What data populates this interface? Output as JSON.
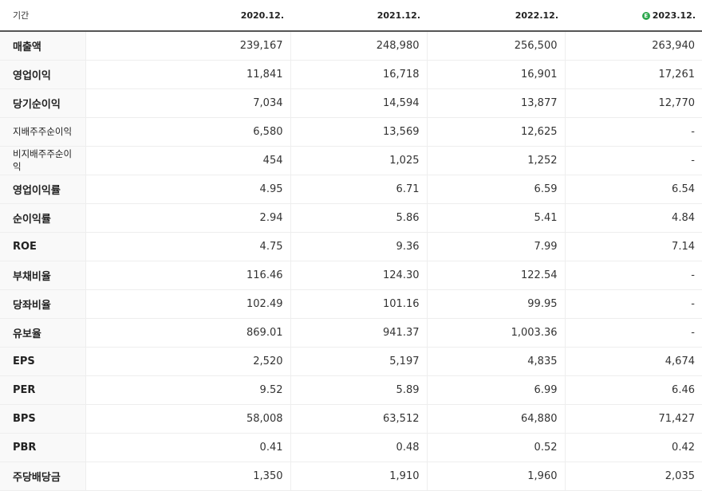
{
  "header": {
    "label": "기간",
    "periods": [
      "2020.12.",
      "2021.12.",
      "2022.12.",
      "2023.12."
    ],
    "estimate_icon": "e-circle-icon",
    "estimate_icon_text": "E",
    "estimate_color": "#2fa84f"
  },
  "rows": [
    {
      "label": "매출액",
      "values": [
        "239,167",
        "248,980",
        "256,500",
        "263,940"
      ]
    },
    {
      "label": "영업이익",
      "values": [
        "11,841",
        "16,718",
        "16,901",
        "17,261"
      ]
    },
    {
      "label": "당기순이익",
      "values": [
        "7,034",
        "14,594",
        "13,877",
        "12,770"
      ]
    },
    {
      "label": "지배주주순이익",
      "values": [
        "6,580",
        "13,569",
        "12,625",
        "-"
      ]
    },
    {
      "label": "비지배주주순이익",
      "values": [
        "454",
        "1,025",
        "1,252",
        "-"
      ]
    },
    {
      "label": "영업이익률",
      "values": [
        "4.95",
        "6.71",
        "6.59",
        "6.54"
      ]
    },
    {
      "label": "순이익률",
      "values": [
        "2.94",
        "5.86",
        "5.41",
        "4.84"
      ]
    },
    {
      "label": "ROE",
      "values": [
        "4.75",
        "9.36",
        "7.99",
        "7.14"
      ]
    },
    {
      "label": "부채비율",
      "values": [
        "116.46",
        "124.30",
        "122.54",
        "-"
      ]
    },
    {
      "label": "당좌비율",
      "values": [
        "102.49",
        "101.16",
        "99.95",
        "-"
      ]
    },
    {
      "label": "유보율",
      "values": [
        "869.01",
        "941.37",
        "1,003.36",
        "-"
      ]
    },
    {
      "label": "EPS",
      "values": [
        "2,520",
        "5,197",
        "4,835",
        "4,674"
      ]
    },
    {
      "label": "PER",
      "values": [
        "9.52",
        "5.89",
        "6.99",
        "6.46"
      ]
    },
    {
      "label": "BPS",
      "values": [
        "58,008",
        "63,512",
        "64,880",
        "71,427"
      ]
    },
    {
      "label": "PBR",
      "values": [
        "0.41",
        "0.48",
        "0.52",
        "0.42"
      ]
    },
    {
      "label": "주당배당금",
      "values": [
        "1,350",
        "1,910",
        "1,960",
        "2,035"
      ]
    }
  ]
}
